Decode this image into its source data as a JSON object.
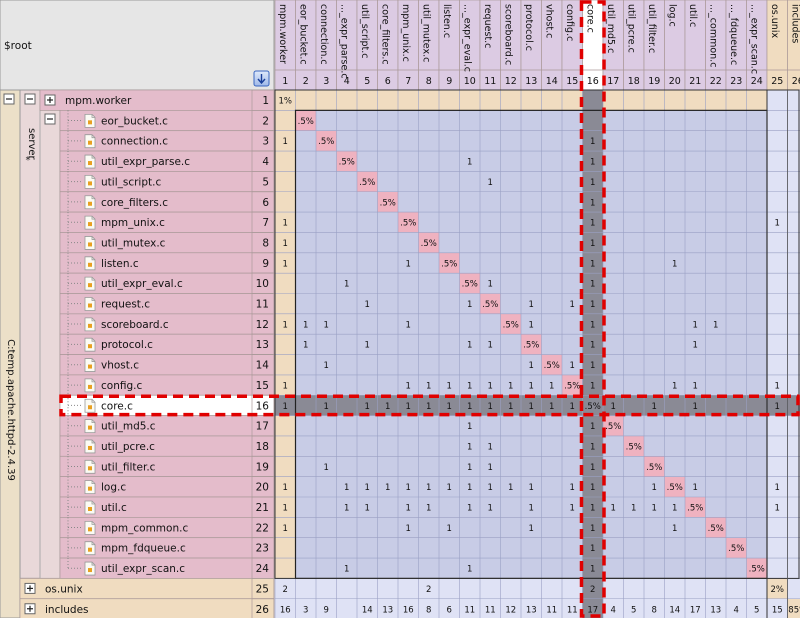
{
  "root_label": "$root",
  "vertical_labels": {
    "project": "C:temp.apache.httpd-2.4.39",
    "server": "server",
    "star": "*"
  },
  "columns": [
    {
      "label": "mpm.worker",
      "num": "1"
    },
    {
      "label": "eor_bucket.c",
      "num": "2"
    },
    {
      "label": "connection.c",
      "num": "3"
    },
    {
      "label": "..._expr_parse.c",
      "num": "4"
    },
    {
      "label": "util_script.c",
      "num": "5"
    },
    {
      "label": "core_filters.c",
      "num": "6"
    },
    {
      "label": "mpm_unix.c",
      "num": "7"
    },
    {
      "label": "util_mutex.c",
      "num": "8"
    },
    {
      "label": "listen.c",
      "num": "9"
    },
    {
      "label": "..._expr_eval.c",
      "num": "10"
    },
    {
      "label": "request.c",
      "num": "11"
    },
    {
      "label": "scoreboard.c",
      "num": "12"
    },
    {
      "label": "protocol.c",
      "num": "13"
    },
    {
      "label": "vhost.c",
      "num": "14"
    },
    {
      "label": "config.c",
      "num": "15"
    },
    {
      "label": "core.c",
      "num": "16"
    },
    {
      "label": "util_md5.c",
      "num": "17"
    },
    {
      "label": "util_pcre.c",
      "num": "18"
    },
    {
      "label": "util_filter.c",
      "num": "19"
    },
    {
      "label": "log.c",
      "num": "20"
    },
    {
      "label": "util.c",
      "num": "21"
    },
    {
      "label": "..._common.c",
      "num": "22"
    },
    {
      "label": "..._fdqueue.c",
      "num": "23"
    },
    {
      "label": "..._expr_scan.c",
      "num": "24"
    },
    {
      "label": "os.unix",
      "num": "25"
    },
    {
      "label": "includes",
      "num": "26"
    }
  ],
  "rows": [
    {
      "label": "mpm.worker",
      "num": "1",
      "kind": "folder",
      "cells": {
        "1": "1%"
      }
    },
    {
      "label": "eor_bucket.c",
      "num": "2",
      "kind": "file",
      "cells": {
        "2": ".5%"
      }
    },
    {
      "label": "connection.c",
      "num": "3",
      "kind": "file",
      "cells": {
        "1": "1",
        "3": ".5%",
        "16": "1"
      }
    },
    {
      "label": "util_expr_parse.c",
      "num": "4",
      "kind": "file",
      "cells": {
        "4": ".5%",
        "10": "1",
        "16": "1"
      }
    },
    {
      "label": "util_script.c",
      "num": "5",
      "kind": "file",
      "cells": {
        "5": ".5%",
        "11": "1",
        "16": "1"
      }
    },
    {
      "label": "core_filters.c",
      "num": "6",
      "kind": "file",
      "cells": {
        "6": ".5%",
        "16": "1"
      }
    },
    {
      "label": "mpm_unix.c",
      "num": "7",
      "kind": "file",
      "cells": {
        "1": "1",
        "7": ".5%",
        "16": "1",
        "25": "1"
      }
    },
    {
      "label": "util_mutex.c",
      "num": "8",
      "kind": "file",
      "cells": {
        "1": "1",
        "8": ".5%",
        "16": "1"
      }
    },
    {
      "label": "listen.c",
      "num": "9",
      "kind": "file",
      "cells": {
        "1": "1",
        "7": "1",
        "9": ".5%",
        "16": "1",
        "20": "1"
      }
    },
    {
      "label": "util_expr_eval.c",
      "num": "10",
      "kind": "file",
      "cells": {
        "4": "1",
        "10": ".5%",
        "11": "1",
        "16": "1"
      }
    },
    {
      "label": "request.c",
      "num": "11",
      "kind": "file",
      "cells": {
        "5": "1",
        "10": "1",
        "11": ".5%",
        "13": "1",
        "15": "1",
        "16": "1"
      }
    },
    {
      "label": "scoreboard.c",
      "num": "12",
      "kind": "file",
      "cells": {
        "1": "1",
        "2": "1",
        "3": "1",
        "7": "1",
        "12": ".5%",
        "13": "1",
        "16": "1",
        "21": "1",
        "22": "1"
      }
    },
    {
      "label": "protocol.c",
      "num": "13",
      "kind": "file",
      "cells": {
        "2": "1",
        "5": "1",
        "10": "1",
        "11": "1",
        "13": ".5%",
        "16": "1",
        "21": "1"
      }
    },
    {
      "label": "vhost.c",
      "num": "14",
      "kind": "file",
      "cells": {
        "3": "1",
        "13": "1",
        "14": ".5%",
        "15": "1",
        "16": "1"
      }
    },
    {
      "label": "config.c",
      "num": "15",
      "kind": "file",
      "cells": {
        "1": "1",
        "7": "1",
        "8": "1",
        "9": "1",
        "10": "1",
        "11": "1",
        "12": "1",
        "13": "1",
        "14": "1",
        "15": ".5%",
        "16": "1",
        "20": "1",
        "21": "1",
        "25": "1"
      }
    },
    {
      "label": "core.c",
      "num": "16",
      "kind": "file",
      "selected": true,
      "cells": {
        "1": "1",
        "3": "1",
        "5": "1",
        "6": "1",
        "7": "1",
        "8": "1",
        "9": "1",
        "10": "1",
        "11": "1",
        "12": "1",
        "13": "1",
        "14": "1",
        "15": "1",
        "16": ".5%",
        "17": "1",
        "19": "1",
        "21": "1",
        "25": "1"
      }
    },
    {
      "label": "util_md5.c",
      "num": "17",
      "kind": "file",
      "cells": {
        "10": "1",
        "16": "1",
        "17": ".5%"
      }
    },
    {
      "label": "util_pcre.c",
      "num": "18",
      "kind": "file",
      "cells": {
        "10": "1",
        "11": "1",
        "16": "1",
        "18": ".5%"
      }
    },
    {
      "label": "util_filter.c",
      "num": "19",
      "kind": "file",
      "cells": {
        "3": "1",
        "10": "1",
        "11": "1",
        "16": "1",
        "19": ".5%"
      }
    },
    {
      "label": "log.c",
      "num": "20",
      "kind": "file",
      "cells": {
        "1": "1",
        "4": "1",
        "5": "1",
        "6": "1",
        "7": "1",
        "8": "1",
        "9": "1",
        "10": "1",
        "11": "1",
        "12": "1",
        "13": "1",
        "15": "1",
        "16": "1",
        "19": "1",
        "20": ".5%",
        "21": "1",
        "25": "1"
      }
    },
    {
      "label": "util.c",
      "num": "21",
      "kind": "file",
      "cells": {
        "1": "1",
        "4": "1",
        "5": "1",
        "7": "1",
        "8": "1",
        "10": "1",
        "11": "1",
        "13": "1",
        "15": "1",
        "16": "1",
        "17": "1",
        "18": "1",
        "19": "1",
        "20": "1",
        "21": ".5%",
        "25": "1"
      }
    },
    {
      "label": "mpm_common.c",
      "num": "22",
      "kind": "file",
      "cells": {
        "1": "1",
        "7": "1",
        "9": "1",
        "13": "1",
        "16": "1",
        "20": "1",
        "22": ".5%"
      }
    },
    {
      "label": "mpm_fdqueue.c",
      "num": "23",
      "kind": "file",
      "cells": {
        "16": "1",
        "23": ".5%"
      }
    },
    {
      "label": "util_expr_scan.c",
      "num": "24",
      "kind": "file",
      "cells": {
        "4": "1",
        "10": "1",
        "16": "1",
        "24": ".5%"
      }
    },
    {
      "label": "os.unix",
      "num": "25",
      "kind": "folder",
      "cells": {
        "1": "2",
        "8": "2",
        "16": "2",
        "25": "2%"
      }
    },
    {
      "label": "includes",
      "num": "26",
      "kind": "folder",
      "cells": {
        "1": "16",
        "2": "3",
        "3": "9",
        "5": "14",
        "6": "13",
        "7": "16",
        "8": "8",
        "9": "6",
        "10": "11",
        "11": "11",
        "12": "12",
        "13": "13",
        "14": "11",
        "15": "11",
        "16": "17",
        "17": "4",
        "18": "5",
        "19": "8",
        "20": "14",
        "21": "17",
        "22": "13",
        "23": "4",
        "24": "5",
        "25": "15",
        "26": "85%"
      }
    }
  ],
  "colors": {
    "label_bg": "#e4bccb",
    "folder_bg": "#f0dcc0",
    "matrix_bg": "#c8cce6",
    "header_bg": "#dccbe3",
    "diag_bg": "#efb2c0",
    "highlight": "#8a8a95",
    "dash": "#e00000"
  },
  "selected_index": 16
}
